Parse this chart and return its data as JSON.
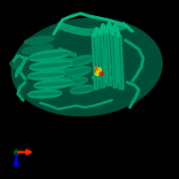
{
  "background_color": "#000000",
  "protein_color": "#009e6e",
  "protein_color_dark": "#007050",
  "protein_color_mid": "#008a60",
  "protein_color_light": "#00b880",
  "ligand_yellow": "#cccc00",
  "ligand_red": "#cc2200",
  "ligand_orange": "#dd6600",
  "axis_x_color": "#ff2200",
  "axis_y_color": "#0000dd",
  "axis_origin_color": "#005500",
  "figsize": [
    2.0,
    2.0
  ],
  "dpi": 100
}
